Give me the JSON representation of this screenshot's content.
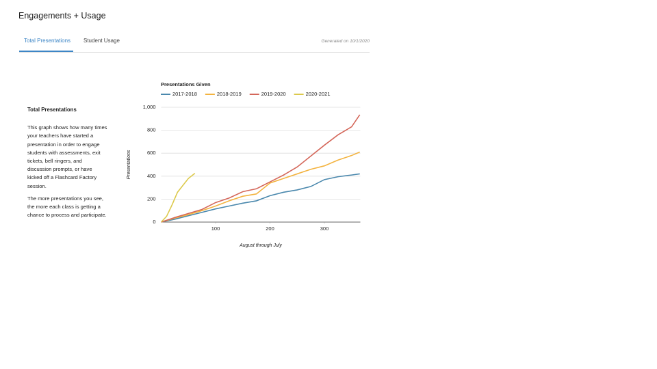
{
  "header": {
    "title": "Engagements + Usage"
  },
  "tabs": [
    {
      "label": "Total Presentations"
    },
    {
      "label": "Student Usage"
    }
  ],
  "generated": "Generated on 10/1/2020",
  "description": {
    "title": "Total Presentations",
    "paragraphs": [
      [
        "This graph shows how many times",
        "your teachers have started a",
        "presentation in order to engage",
        "students with assessments, exit",
        "tickets, bell ringers, and",
        "discussion prompts, or have",
        "kicked off a Flashcard Factory",
        "session."
      ],
      [
        "The more presentations you see,",
        "the more each class is getting a",
        "chance to process and participate."
      ]
    ]
  },
  "chart_data": {
    "type": "line",
    "title": "Presentations Given",
    "x_label": "August through July",
    "y_label": "Presentations",
    "xlim": [
      0,
      366
    ],
    "ylim": [
      0,
      1000
    ],
    "xticks": [
      100,
      200,
      300
    ],
    "yticks": [
      0,
      200,
      400,
      600,
      800,
      {
        "value": 1000,
        "label": "1,000"
      }
    ],
    "grid": true,
    "series": [
      {
        "name": "2017-2018",
        "color": "#4a88ad",
        "x": [
          0,
          25,
          50,
          75,
          100,
          125,
          150,
          175,
          200,
          225,
          250,
          275,
          300,
          325,
          350,
          365
        ],
        "values": [
          0,
          25,
          55,
          85,
          115,
          140,
          165,
          185,
          230,
          260,
          280,
          310,
          370,
          395,
          410,
          420
        ]
      },
      {
        "name": "2018-2019",
        "color": "#f3b33f",
        "x": [
          0,
          25,
          50,
          75,
          100,
          125,
          150,
          175,
          200,
          225,
          250,
          275,
          300,
          325,
          350,
          365
        ],
        "values": [
          0,
          35,
          65,
          100,
          140,
          185,
          225,
          245,
          340,
          380,
          420,
          460,
          490,
          540,
          580,
          610
        ]
      },
      {
        "name": "2019-2020",
        "color": "#d4675a",
        "x": [
          0,
          25,
          50,
          75,
          100,
          125,
          150,
          175,
          200,
          225,
          250,
          275,
          300,
          325,
          350,
          365
        ],
        "values": [
          0,
          40,
          75,
          110,
          170,
          210,
          265,
          290,
          350,
          410,
          480,
          575,
          670,
          760,
          830,
          935
        ]
      },
      {
        "name": "2020-2021",
        "color": "#dcc94b",
        "x": [
          0,
          10,
          20,
          30,
          40,
          50,
          62
        ],
        "values": [
          0,
          50,
          150,
          260,
          320,
          380,
          425
        ]
      }
    ]
  }
}
